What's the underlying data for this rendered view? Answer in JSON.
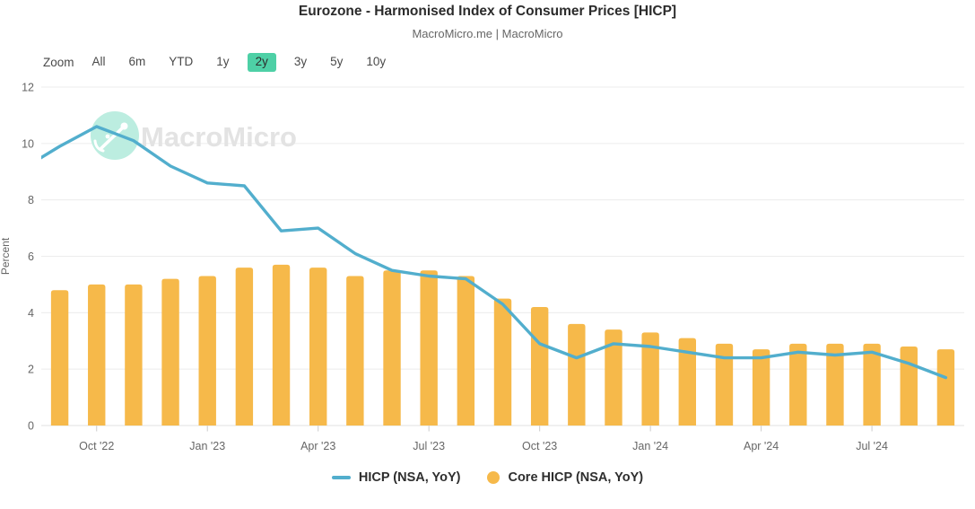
{
  "header": {
    "title": "Eurozone - Harmonised Index of Consumer Prices [HICP]",
    "subtitle": "MacroMicro.me | MacroMicro"
  },
  "toolbar": {
    "zoom_label": "Zoom",
    "buttons": [
      {
        "label": "All",
        "active": false
      },
      {
        "label": "6m",
        "active": false
      },
      {
        "label": "YTD",
        "active": false
      },
      {
        "label": "1y",
        "active": false
      },
      {
        "label": "2y",
        "active": true
      },
      {
        "label": "3y",
        "active": false
      },
      {
        "label": "5y",
        "active": false
      },
      {
        "label": "10y",
        "active": false
      }
    ]
  },
  "watermark": {
    "brand": "MacroMicro"
  },
  "colors": {
    "line": "#52aecd",
    "bar": "#f6b94a",
    "active_button_bg": "#4ed0a6",
    "grid": "#ececec",
    "axis_line": "#e0e0e0",
    "tick": "#cccccc",
    "axis_text": "#666666",
    "watermark_circle": "#bcede0",
    "watermark_text": "#e3e3e3"
  },
  "chart_data": {
    "type": "line+bar",
    "title": "Eurozone - Harmonised Index of Consumer Prices [HICP]",
    "subtitle": "MacroMicro.me | MacroMicro",
    "ylabel": "Percent",
    "xlabel": "",
    "ylim": [
      0,
      12
    ],
    "yticks": [
      0,
      2,
      4,
      6,
      8,
      10,
      12
    ],
    "grid": "horizontal",
    "legend_position": "bottom",
    "categories": [
      "Sep '22",
      "Oct '22",
      "Nov '22",
      "Dec '22",
      "Jan '23",
      "Feb '23",
      "Mar '23",
      "Apr '23",
      "May '23",
      "Jun '23",
      "Jul '23",
      "Aug '23",
      "Sep '23",
      "Oct '23",
      "Nov '23",
      "Dec '23",
      "Jan '24",
      "Feb '24",
      "Mar '24",
      "Apr '24",
      "May '24",
      "Jun '24",
      "Jul '24",
      "Aug '24",
      "Sep '24"
    ],
    "x_tick_labels": [
      "Oct '22",
      "Jan '23",
      "Apr '23",
      "Jul '23",
      "Oct '23",
      "Jan '24",
      "Apr '24",
      "Jul '24"
    ],
    "x_tick_month_index": [
      1,
      4,
      7,
      10,
      13,
      16,
      19,
      22
    ],
    "series": [
      {
        "name": "HICP (NSA, YoY)",
        "type": "line",
        "color": "#52aecd",
        "pre_point": {
          "category": "Aug '22",
          "value": 9.1,
          "note": "clipped at left plot edge"
        },
        "values": [
          9.9,
          10.6,
          10.1,
          9.2,
          8.6,
          8.5,
          6.9,
          7.0,
          6.1,
          5.5,
          5.3,
          5.2,
          4.3,
          2.9,
          2.4,
          2.9,
          2.8,
          2.6,
          2.4,
          2.4,
          2.6,
          2.5,
          2.6,
          2.2,
          1.7
        ]
      },
      {
        "name": "Core HICP (NSA, YoY)",
        "type": "bar",
        "color": "#f6b94a",
        "values": [
          4.8,
          5.0,
          5.0,
          5.2,
          5.3,
          5.6,
          5.7,
          5.6,
          5.3,
          5.5,
          5.5,
          5.3,
          4.5,
          4.2,
          3.6,
          3.4,
          3.3,
          3.1,
          2.9,
          2.7,
          2.9,
          2.9,
          2.9,
          2.8,
          2.7
        ]
      }
    ]
  },
  "legend": {
    "items": [
      {
        "label": "HICP (NSA, YoY)",
        "swatch": "line",
        "color": "#52aecd"
      },
      {
        "label": "Core HICP (NSA, YoY)",
        "swatch": "circle",
        "color": "#f6b94a"
      }
    ]
  }
}
